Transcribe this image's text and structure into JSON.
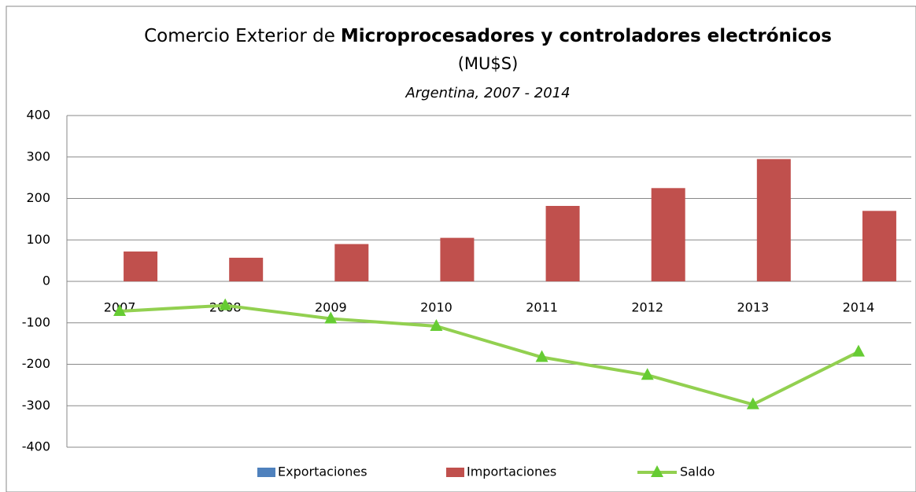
{
  "chart_data": {
    "type": "bar",
    "title": [
      "Comercio Exterior de",
      "Microprocesadores y controladores electrónicos"
    ],
    "title_line2": "(MU$S)",
    "subtitle": "Argentina, 2007 - 2014",
    "categories": [
      "2007",
      "2008",
      "2009",
      "2010",
      "2011",
      "2012",
      "2013",
      "2014"
    ],
    "series": [
      {
        "name": "Exportaciones",
        "type": "bar",
        "color": "#4f81bd",
        "values": [
          0,
          0,
          0,
          0,
          0,
          0,
          0,
          0
        ]
      },
      {
        "name": "Importaciones",
        "type": "bar",
        "color": "#c0504d",
        "values": [
          72,
          57,
          90,
          105,
          182,
          225,
          295,
          170
        ]
      },
      {
        "name": "Saldo",
        "type": "line",
        "color": "#92d050",
        "marker_color": "#66cc33",
        "values": [
          -72,
          -58,
          -90,
          -108,
          -183,
          -226,
          -297,
          -170
        ]
      }
    ],
    "ylim": [
      -400,
      400
    ],
    "yticks": [
      -400,
      -300,
      -200,
      -100,
      0,
      100,
      200,
      300,
      400
    ],
    "grid": true,
    "legend": "bottom"
  }
}
